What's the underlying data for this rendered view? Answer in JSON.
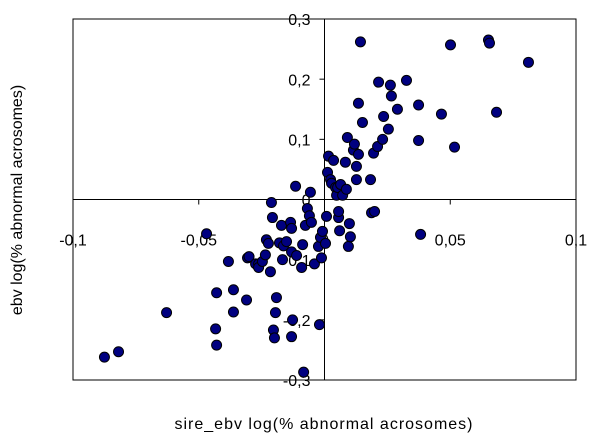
{
  "chart_data": {
    "type": "scatter",
    "x_label": "sire_ebv log(% abnormal acrosomes)",
    "y_label": "ebv log(% abnormal acrosomes)",
    "color": "#000080",
    "xlim": [
      -0.1,
      0.1
    ],
    "ylim": [
      -0.3,
      0.3
    ],
    "xticks": [
      {
        "value": -0.1,
        "label": "-0,1"
      },
      {
        "value": -0.05,
        "label": "-0,05"
      },
      0,
      {
        "value": 0.05,
        "label": "0,05"
      },
      {
        "value": 0.1,
        "label": "0,1"
      }
    ],
    "yticks": [
      {
        "value": -0.3,
        "label": "-0,3"
      },
      {
        "value": -0.2,
        "label": "-0,2"
      },
      {
        "value": -0.1,
        "label": "-0,1"
      },
      0,
      {
        "value": 0.1,
        "label": "0,1"
      },
      {
        "value": 0.2,
        "label": "0,2"
      },
      {
        "value": 0.3,
        "label": "0,3"
      }
    ],
    "x": [
      -0.0875,
      -0.0819,
      -0.0628,
      -0.0469,
      -0.0433,
      -0.0429,
      -0.0429,
      -0.0382,
      -0.0362,
      -0.0362,
      -0.031,
      -0.0306,
      -0.03,
      -0.0274,
      -0.0262,
      -0.0262,
      -0.0247,
      -0.0235,
      -0.0231,
      -0.0223,
      -0.0215,
      -0.0211,
      -0.0207,
      -0.0203,
      -0.0199,
      -0.0195,
      -0.0191,
      -0.0179,
      -0.0171,
      -0.0167,
      -0.0163,
      -0.0151,
      -0.0135,
      -0.0131,
      -0.0131,
      -0.0131,
      -0.0127,
      -0.0115,
      -0.0111,
      -0.0091,
      -0.0087,
      -0.0083,
      -0.0076,
      -0.0068,
      -0.006,
      -0.0056,
      -0.0052,
      -0.004,
      -0.0024,
      -0.002,
      -0.0016,
      -0.0012,
      -0.0008,
      0.0004,
      0.0008,
      0.0012,
      0.0016,
      0.0024,
      0.0028,
      0.0036,
      0.0044,
      0.0048,
      0.0052,
      0.0056,
      0.0056,
      0.006,
      0.0064,
      0.0072,
      0.0083,
      0.0087,
      0.0091,
      0.0095,
      0.0099,
      0.0103,
      0.0115,
      0.0119,
      0.0127,
      0.0127,
      0.0135,
      0.0135,
      0.0143,
      0.0151,
      0.0183,
      0.0187,
      0.0195,
      0.0199,
      0.0211,
      0.0215,
      0.0231,
      0.0235,
      0.0254,
      0.0262,
      0.0266,
      0.029,
      0.0326,
      0.0374,
      0.0374,
      0.0382,
      0.0465,
      0.0501,
      0.0517,
      0.0652,
      0.0656,
      0.0684,
      0.0811
    ],
    "y": [
      -0.262,
      -0.253,
      -0.188,
      -0.057,
      -0.215,
      -0.242,
      -0.155,
      -0.103,
      -0.15,
      -0.187,
      -0.167,
      -0.097,
      -0.095,
      -0.107,
      -0.107,
      -0.113,
      -0.103,
      -0.092,
      -0.067,
      -0.073,
      -0.12,
      -0.005,
      -0.03,
      -0.217,
      -0.23,
      -0.188,
      -0.163,
      -0.072,
      -0.043,
      -0.1,
      -0.077,
      -0.07,
      -0.038,
      -0.048,
      -0.087,
      -0.228,
      -0.2,
      0.022,
      -0.093,
      -0.113,
      -0.075,
      -0.287,
      -0.043,
      -0.015,
      -0.027,
      0.012,
      -0.038,
      -0.107,
      -0.078,
      -0.208,
      -0.063,
      -0.097,
      -0.053,
      -0.073,
      -0.028,
      0.045,
      0.072,
      0.033,
      0.027,
      0.065,
      0.02,
      0.007,
      0.02,
      -0.03,
      -0.02,
      -0.052,
      0.025,
      0.007,
      0.062,
      0.017,
      0.103,
      -0.078,
      -0.04,
      -0.062,
      0.082,
      0.092,
      0.055,
      0.033,
      0.075,
      0.16,
      0.262,
      0.128,
      0.033,
      -0.022,
      0.077,
      -0.02,
      0.088,
      0.195,
      0.1,
      0.138,
      0.117,
      0.19,
      0.172,
      0.15,
      0.198,
      0.157,
      0.098,
      -0.058,
      0.142,
      0.257,
      0.087,
      0.265,
      0.26,
      0.145,
      0.228
    ]
  }
}
